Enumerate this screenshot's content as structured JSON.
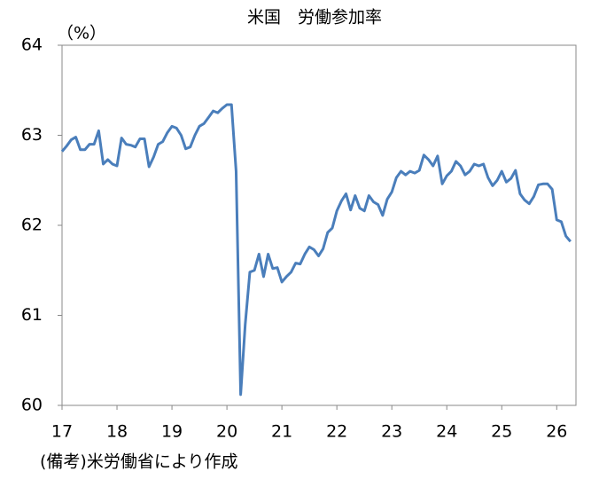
{
  "chart_data": {
    "type": "line",
    "title": "米国　労働参加率",
    "y_unit": "（%）",
    "source": "(備考)米労働省により作成",
    "xlim": [
      17,
      26.35
    ],
    "xticks": [
      17,
      18,
      19,
      20,
      21,
      22,
      23,
      24,
      25,
      26
    ],
    "ylim": [
      60,
      64
    ],
    "yticks": [
      60,
      61,
      62,
      63,
      64
    ],
    "grid": false,
    "x": [
      17,
      17.083,
      17.167,
      17.25,
      17.333,
      17.417,
      17.5,
      17.583,
      17.667,
      17.75,
      17.833,
      17.917,
      18,
      18.083,
      18.167,
      18.25,
      18.333,
      18.417,
      18.5,
      18.583,
      18.667,
      18.75,
      18.833,
      18.917,
      19,
      19.083,
      19.167,
      19.25,
      19.333,
      19.417,
      19.5,
      19.583,
      19.667,
      19.75,
      19.833,
      19.917,
      20,
      20.083,
      20.167,
      20.25,
      20.333,
      20.417,
      20.5,
      20.583,
      20.667,
      20.75,
      20.833,
      20.917,
      21,
      21.083,
      21.167,
      21.25,
      21.333,
      21.417,
      21.5,
      21.583,
      21.667,
      21.75,
      21.833,
      21.917,
      22,
      22.083,
      22.167,
      22.25,
      22.333,
      22.417,
      22.5,
      22.583,
      22.667,
      22.75,
      22.833,
      22.917,
      23,
      23.083,
      23.167,
      23.25,
      23.333,
      23.417,
      23.5,
      23.583,
      23.667,
      23.75,
      23.833,
      23.917,
      24,
      24.083,
      24.167,
      24.25,
      24.333,
      24.417,
      24.5,
      24.583,
      24.667,
      24.75,
      24.833,
      24.917,
      25,
      25.083,
      25.167,
      25.25,
      25.333,
      25.417,
      25.5,
      25.583,
      25.667,
      25.75,
      25.833,
      25.917,
      26,
      26.083,
      26.167,
      26.25
    ],
    "series": [
      {
        "name": "労働参加率",
        "color": "#4a7ebb",
        "values": [
          62.82,
          62.88,
          62.95,
          62.98,
          62.84,
          62.84,
          62.9,
          62.9,
          63.05,
          62.68,
          62.73,
          62.68,
          62.66,
          62.97,
          62.9,
          62.89,
          62.87,
          62.96,
          62.96,
          62.65,
          62.76,
          62.9,
          62.93,
          63.03,
          63.1,
          63.08,
          63.0,
          62.85,
          62.87,
          63.0,
          63.1,
          63.13,
          63.2,
          63.27,
          63.25,
          63.3,
          63.34,
          63.34,
          62.6,
          60.12,
          60.9,
          61.48,
          61.5,
          61.68,
          61.43,
          61.68,
          61.52,
          61.53,
          61.37,
          61.43,
          61.48,
          61.58,
          61.57,
          61.68,
          61.76,
          61.73,
          61.66,
          61.74,
          61.92,
          61.97,
          62.16,
          62.27,
          62.35,
          62.17,
          62.33,
          62.19,
          62.16,
          62.33,
          62.26,
          62.23,
          62.11,
          62.29,
          62.37,
          62.53,
          62.6,
          62.56,
          62.6,
          62.58,
          62.61,
          62.78,
          62.73,
          62.66,
          62.77,
          62.46,
          62.55,
          62.6,
          62.71,
          62.66,
          62.56,
          62.6,
          62.68,
          62.66,
          62.68,
          62.53,
          62.44,
          62.5,
          62.6,
          62.48,
          62.52,
          62.61,
          62.35,
          62.28,
          62.24,
          62.32,
          62.45,
          62.46,
          62.46,
          62.4,
          62.06,
          62.04,
          61.88,
          61.82
        ]
      }
    ]
  }
}
